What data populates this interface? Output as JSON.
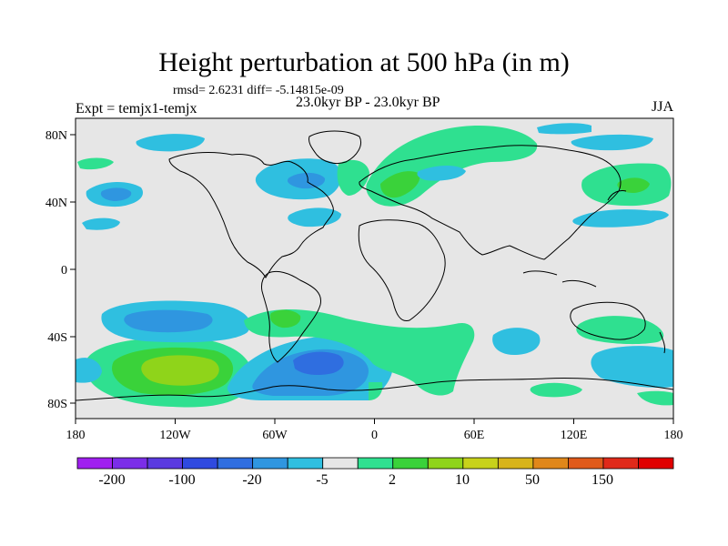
{
  "title": "Height perturbation at 500 hPa (in m)",
  "stats": "rmsd= 2.6231 diff= -5.14815e-09",
  "left_label": "Expt = temjx1-temjx",
  "center_label": "23.0kyr BP - 23.0kyr BP",
  "right_label": "JJA",
  "lat_ticks": [
    "80N",
    "40N",
    "0",
    "40S",
    "80S"
  ],
  "lon_ticks": [
    "180",
    "120W",
    "60W",
    "0",
    "60E",
    "120E",
    "180"
  ],
  "colorbar": {
    "colors": [
      "#a020f0",
      "#7b2ee8",
      "#5a3ae0",
      "#2f4ae0",
      "#2f6ee0",
      "#2f96e0",
      "#2fbfe0",
      "#e6e6e6",
      "#2fe090",
      "#3ad23a",
      "#8fd41a",
      "#c8d21a",
      "#d8b41a",
      "#e0871a",
      "#e05a1a",
      "#e02a1a",
      "#e00000"
    ],
    "labels": [
      "-200",
      "-100",
      "-20",
      "-5",
      "2",
      "10",
      "50",
      "150"
    ]
  },
  "colors": {
    "background": "#e6e6e6",
    "coast": "#000000"
  }
}
